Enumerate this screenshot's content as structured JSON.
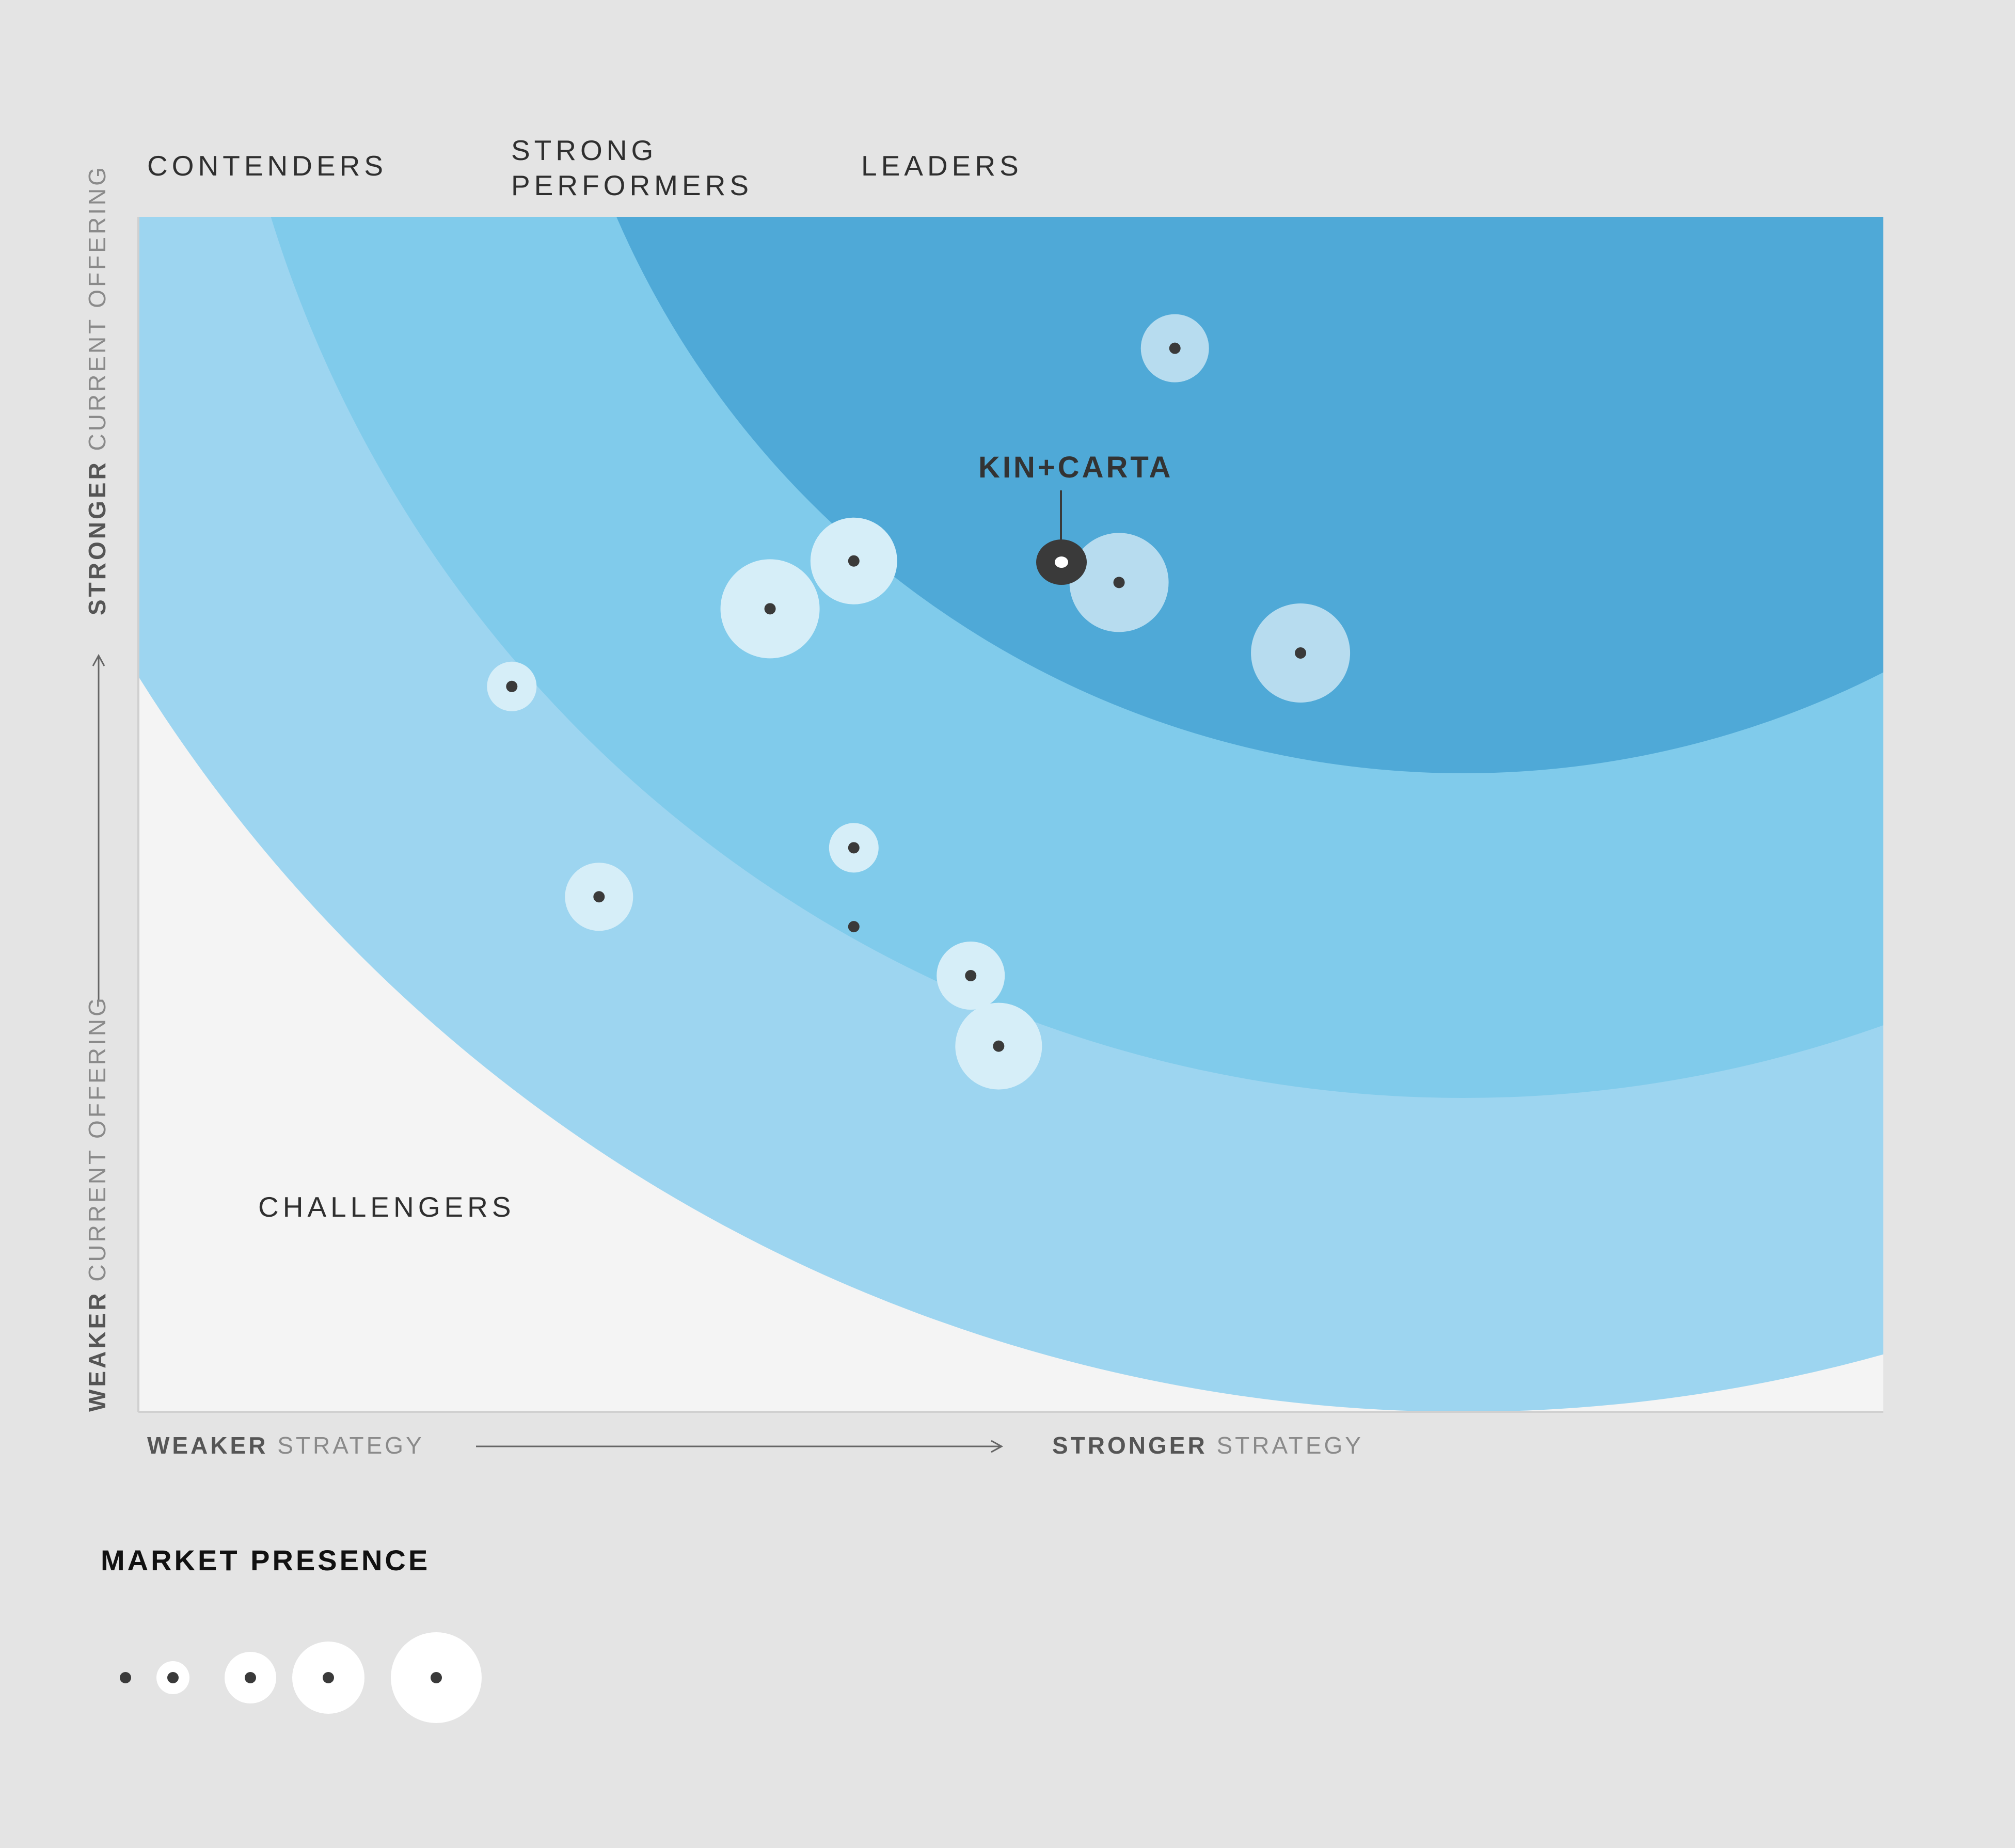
{
  "segments": {
    "contenders": "CONTENDERS",
    "strong_performers_line1": "STRONG",
    "strong_performers_line2": "PERFORMERS",
    "leaders": "LEADERS",
    "challengers": "CHALLENGERS"
  },
  "y_axis": {
    "top_bold": "STRONGER",
    "top_light": "CURRENT OFFERING",
    "bottom_bold": "WEAKER",
    "bottom_light": "CURRENT OFFERING"
  },
  "x_axis": {
    "left_bold": "WEAKER",
    "left_light": "STRATEGY",
    "right_bold": "STRONGER",
    "right_light": "STRATEGY"
  },
  "legend": {
    "title": "MARKET PRESENCE",
    "sizes": [
      1,
      2,
      3,
      4,
      5
    ]
  },
  "colors": {
    "background": "#e4e4e4",
    "plot_background": "#f4f4f4",
    "ring_challengers": "#9dd5f0",
    "ring_strong": "#80cbeb",
    "ring_leaders": "#4fa9d7",
    "marker_dot": "#3a3a3a",
    "highlight": "#3a3a3a"
  },
  "chart_data": {
    "type": "scatter",
    "xlabel": "STRATEGY",
    "ylabel": "CURRENT OFFERING",
    "xlim": [
      0,
      100
    ],
    "ylim": [
      0,
      100
    ],
    "grid": false,
    "highlight": {
      "name": "KIN+CARTA",
      "x": 52.9,
      "y": 71.1,
      "presence": 2
    },
    "points": [
      {
        "x": 59.4,
        "y": 89.0,
        "presence": 2
      },
      {
        "x": 56.2,
        "y": 69.4,
        "presence": 4
      },
      {
        "x": 66.6,
        "y": 63.5,
        "presence": 4
      },
      {
        "x": 41.0,
        "y": 71.2,
        "presence": 3
      },
      {
        "x": 36.2,
        "y": 67.2,
        "presence": 4
      },
      {
        "x": 21.4,
        "y": 60.7,
        "presence": 1
      },
      {
        "x": 41.0,
        "y": 47.2,
        "presence": 1
      },
      {
        "x": 26.4,
        "y": 43.1,
        "presence": 2
      },
      {
        "x": 41.0,
        "y": 40.6,
        "presence": 0
      },
      {
        "x": 47.7,
        "y": 36.5,
        "presence": 2
      },
      {
        "x": 49.3,
        "y": 30.6,
        "presence": 3
      }
    ]
  }
}
